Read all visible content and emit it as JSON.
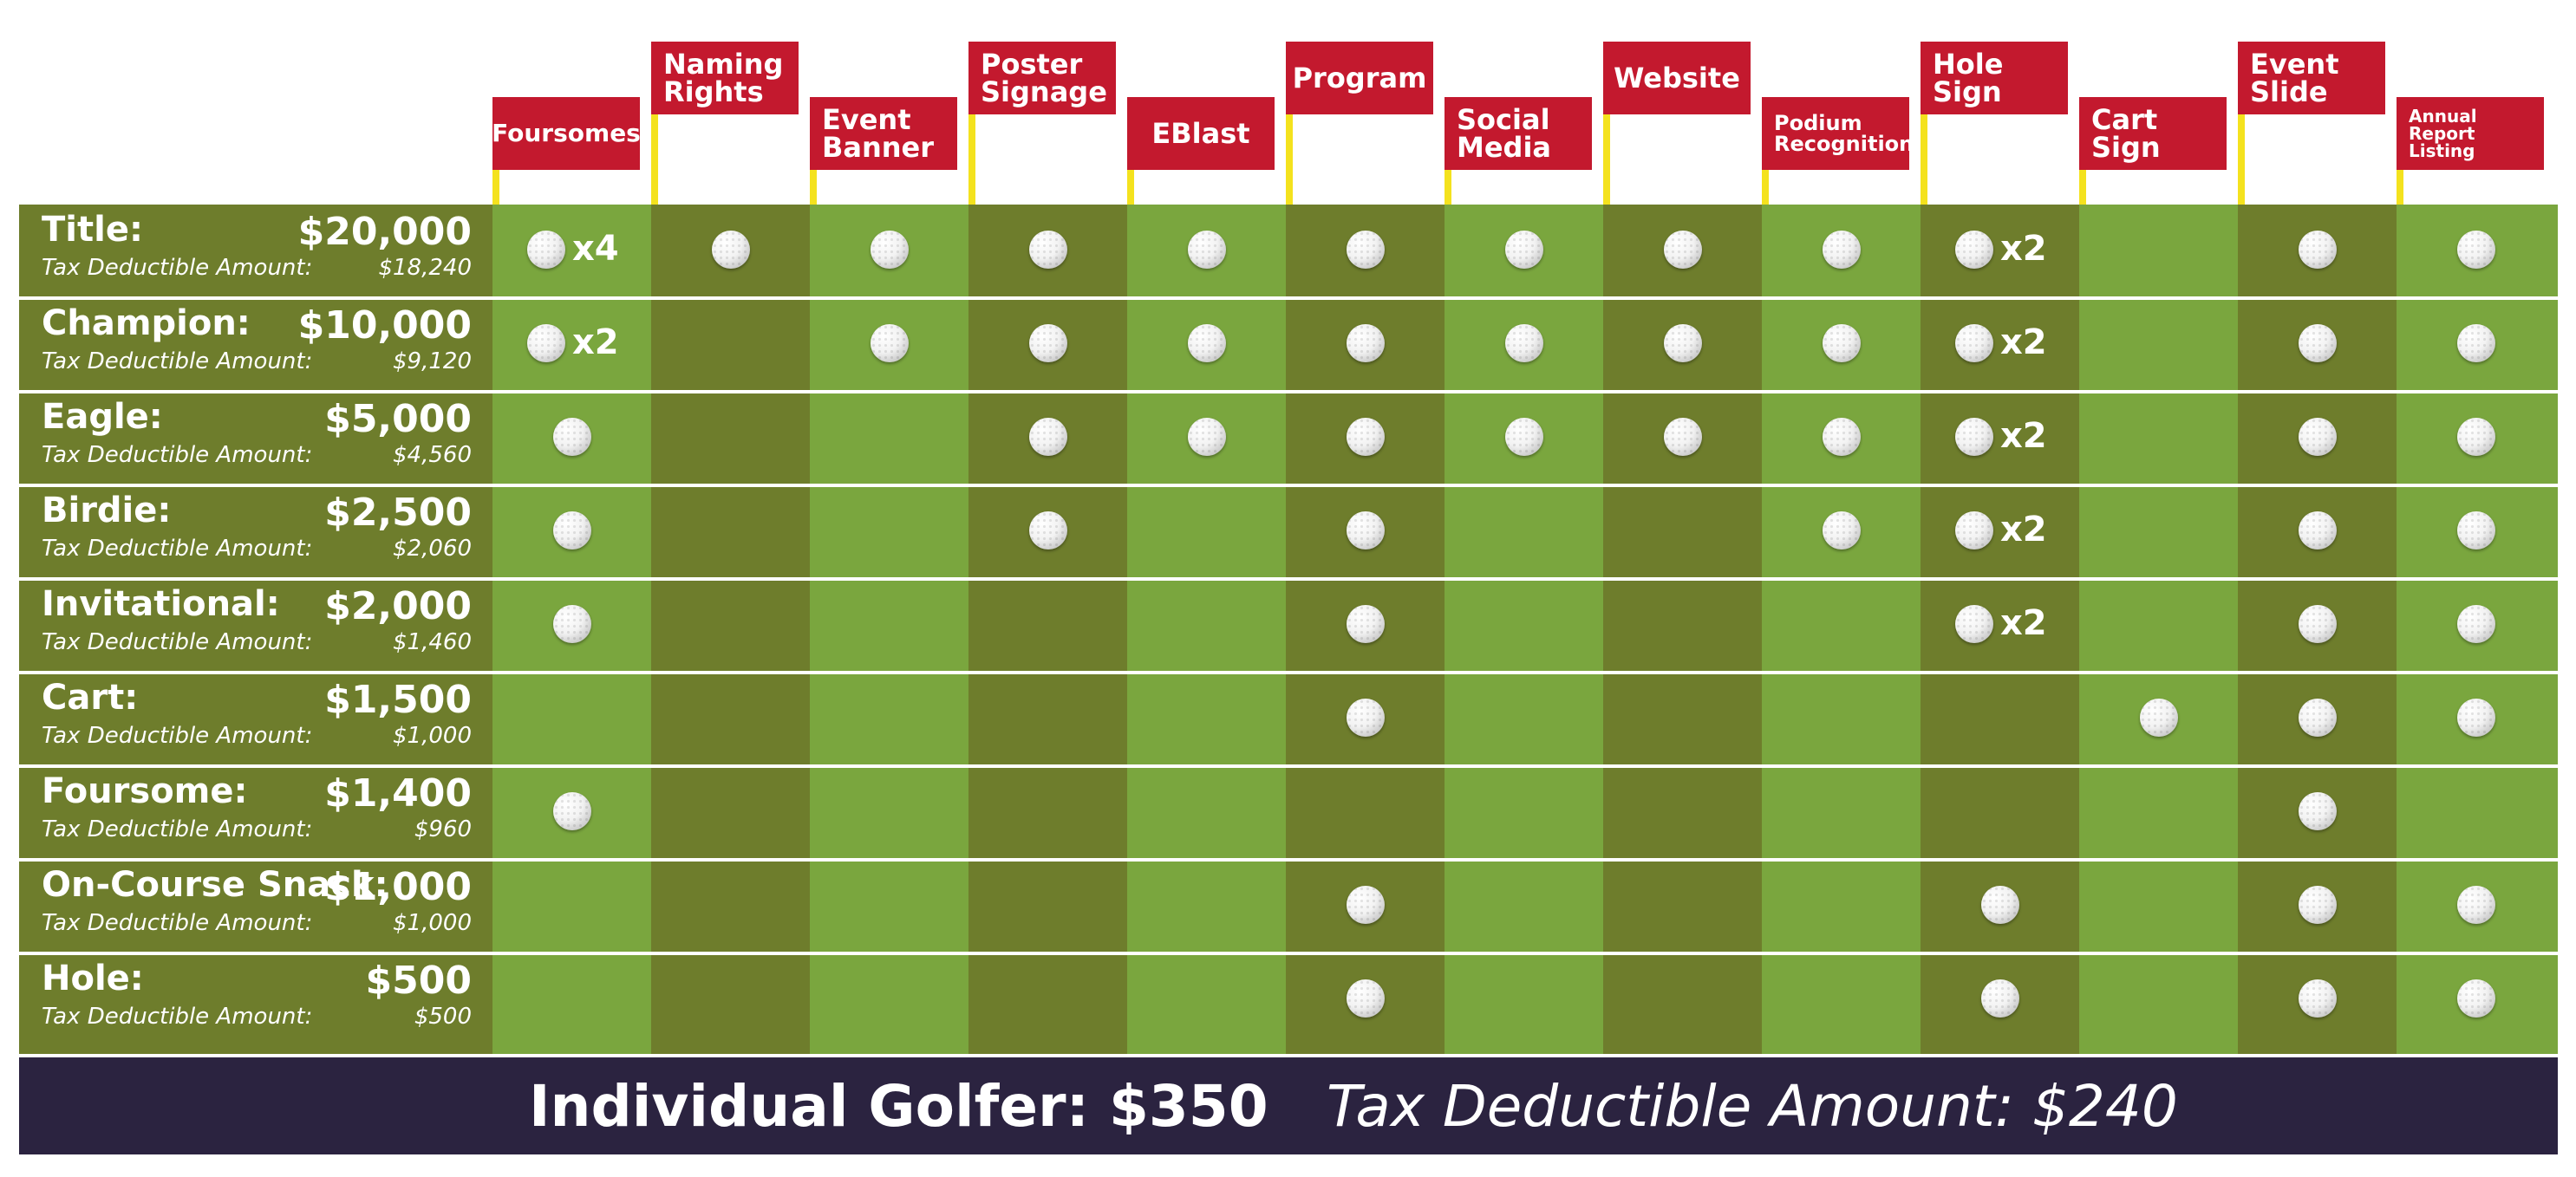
{
  "colors": {
    "flag_red": "#c3192e",
    "pole_yellow": "#f4e21e",
    "dark_green": "#6e7d2c",
    "light_green": "#7aa63e",
    "footer_navy": "#2b2340",
    "text_white": "#ffffff"
  },
  "benefits": [
    {
      "label": "Foursomes",
      "icon": "flag-icon"
    },
    {
      "label": "Naming\nRights",
      "icon": "flag-icon"
    },
    {
      "label": "Event\nBanner",
      "icon": "flag-icon"
    },
    {
      "label": "Poster\nSignage",
      "icon": "flag-icon"
    },
    {
      "label": "EBlast",
      "icon": "flag-icon"
    },
    {
      "label": "Program",
      "icon": "flag-icon"
    },
    {
      "label": "Social\nMedia",
      "icon": "flag-icon"
    },
    {
      "label": "Website",
      "icon": "flag-icon"
    },
    {
      "label": "Podium\nRecognition",
      "icon": "flag-icon"
    },
    {
      "label": "Hole\nSign",
      "icon": "flag-icon"
    },
    {
      "label": "Cart\nSign",
      "icon": "flag-icon"
    },
    {
      "label": "Event\nSlide",
      "icon": "flag-icon"
    },
    {
      "label": "Annual\nReport Listing",
      "icon": "flag-icon"
    }
  ],
  "tiers": [
    {
      "name": "Title:",
      "price": "$20,000",
      "tax_label": "Tax Deductible Amount:",
      "tax_value": "$18,240",
      "cells": [
        "x4",
        "",
        "",
        "",
        "",
        "",
        "",
        "",
        "",
        "x2",
        null,
        "",
        ""
      ]
    },
    {
      "name": "Champion:",
      "price": "$10,000",
      "tax_label": "Tax Deductible Amount:",
      "tax_value": "$9,120",
      "cells": [
        "x2",
        null,
        "",
        "",
        "",
        "",
        "",
        "",
        "",
        "x2",
        null,
        "",
        ""
      ]
    },
    {
      "name": "Eagle:",
      "price": "$5,000",
      "tax_label": "Tax Deductible Amount:",
      "tax_value": "$4,560",
      "cells": [
        "",
        null,
        null,
        "",
        "",
        "",
        "",
        "",
        "",
        "x2",
        null,
        "",
        ""
      ]
    },
    {
      "name": "Birdie:",
      "price": "$2,500",
      "tax_label": "Tax Deductible Amount:",
      "tax_value": "$2,060",
      "cells": [
        "",
        null,
        null,
        "",
        null,
        "",
        null,
        null,
        "",
        "x2",
        null,
        "",
        ""
      ]
    },
    {
      "name": "Invitational:",
      "price": "$2,000",
      "tax_label": "Tax Deductible Amount:",
      "tax_value": "$1,460",
      "cells": [
        "",
        null,
        null,
        null,
        null,
        "",
        null,
        null,
        null,
        "x2",
        null,
        "",
        ""
      ]
    },
    {
      "name": "Cart:",
      "price": "$1,500",
      "tax_label": "Tax Deductible Amount:",
      "tax_value": "$1,000",
      "cells": [
        null,
        null,
        null,
        null,
        null,
        "",
        null,
        null,
        null,
        null,
        "",
        "",
        ""
      ]
    },
    {
      "name": "Foursome:",
      "price": "$1,400",
      "tax_label": "Tax Deductible Amount:",
      "tax_value": "$960",
      "cells": [
        "",
        null,
        null,
        null,
        null,
        null,
        null,
        null,
        null,
        null,
        null,
        "",
        null
      ]
    },
    {
      "name": "On-Course Snack:",
      "price": "$1,000",
      "tax_label": "Tax Deductible Amount:",
      "tax_value": "$1,000",
      "cells": [
        null,
        null,
        null,
        null,
        null,
        "",
        null,
        null,
        null,
        "",
        null,
        "",
        ""
      ]
    },
    {
      "name": "Hole:",
      "price": "$500",
      "tax_label": "Tax Deductible Amount:",
      "tax_value": "$500",
      "cells": [
        null,
        null,
        null,
        null,
        null,
        "",
        null,
        null,
        null,
        "",
        null,
        "",
        ""
      ]
    }
  ],
  "footer": {
    "individual": "Individual Golfer: $350",
    "tax": "Tax Deductible Amount: $240"
  }
}
